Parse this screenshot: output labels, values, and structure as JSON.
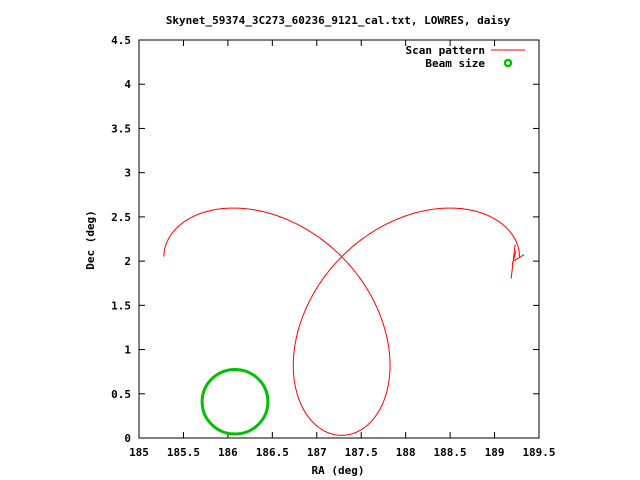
{
  "chart_data": {
    "type": "line",
    "title": "Skynet_59374_3C273_60236_9121_cal.txt, LOWRES, daisy",
    "xlabel": "RA (deg)",
    "ylabel": "Dec (deg)",
    "xlim": [
      185,
      189.5
    ],
    "ylim": [
      0,
      4.5
    ],
    "x_ticks": [
      185,
      185.5,
      186,
      186.5,
      187,
      187.5,
      188,
      188.5,
      189,
      189.5
    ],
    "x_tick_labels": [
      "185",
      "185.5",
      "186",
      "186.5",
      "187",
      "187.5",
      "188",
      "188.5",
      "189",
      "189.5"
    ],
    "y_ticks": [
      0,
      0.5,
      1,
      1.5,
      2,
      2.5,
      3,
      3.5,
      4,
      4.5
    ],
    "y_tick_labels": [
      "0",
      "0.5",
      "1",
      "1.5",
      "2",
      "2.5",
      "3",
      "3.5",
      "4",
      "4.5"
    ],
    "grid": false,
    "legend_position": "top-right",
    "series": [
      {
        "name": "Scan pattern",
        "kind": "daisy-rose",
        "color": "#ff0000",
        "center": [
          187.28,
          2.05
        ],
        "amplitude_x": 2.0,
        "amplitude_y": 2.02,
        "petals": 4,
        "endpoint": [
          189.22,
          2.05
        ]
      },
      {
        "name": "Beam size",
        "kind": "circle",
        "color": "#00c000",
        "center": [
          186.08,
          0.41
        ],
        "radius_x": 0.37,
        "radius_y": 0.365
      }
    ]
  }
}
